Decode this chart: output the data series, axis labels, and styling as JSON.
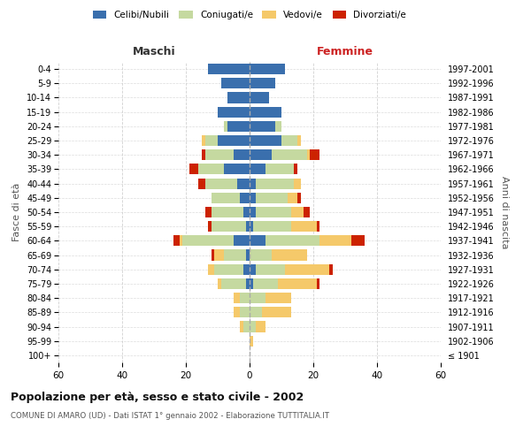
{
  "age_groups": [
    "100+",
    "95-99",
    "90-94",
    "85-89",
    "80-84",
    "75-79",
    "70-74",
    "65-69",
    "60-64",
    "55-59",
    "50-54",
    "45-49",
    "40-44",
    "35-39",
    "30-34",
    "25-29",
    "20-24",
    "15-19",
    "10-14",
    "5-9",
    "0-4"
  ],
  "birth_years": [
    "≤ 1901",
    "1902-1906",
    "1907-1911",
    "1912-1916",
    "1917-1921",
    "1922-1926",
    "1927-1931",
    "1932-1936",
    "1937-1941",
    "1942-1946",
    "1947-1951",
    "1952-1956",
    "1957-1961",
    "1962-1966",
    "1967-1971",
    "1972-1976",
    "1977-1981",
    "1982-1986",
    "1987-1991",
    "1992-1996",
    "1997-2001"
  ],
  "males": {
    "celibi": [
      0,
      0,
      0,
      0,
      0,
      1,
      2,
      1,
      5,
      1,
      2,
      3,
      4,
      8,
      5,
      10,
      7,
      10,
      7,
      9,
      13
    ],
    "coniugati": [
      0,
      0,
      2,
      3,
      3,
      8,
      9,
      7,
      16,
      11,
      10,
      9,
      10,
      8,
      9,
      4,
      1,
      0,
      0,
      0,
      0
    ],
    "vedovi": [
      0,
      0,
      1,
      2,
      2,
      1,
      2,
      3,
      1,
      0,
      0,
      0,
      0,
      0,
      0,
      1,
      0,
      0,
      0,
      0,
      0
    ],
    "divorziati": [
      0,
      0,
      0,
      0,
      0,
      0,
      0,
      1,
      2,
      1,
      2,
      0,
      2,
      3,
      1,
      0,
      0,
      0,
      0,
      0,
      0
    ]
  },
  "females": {
    "nubili": [
      0,
      0,
      0,
      0,
      0,
      1,
      2,
      0,
      5,
      1,
      2,
      2,
      2,
      5,
      7,
      10,
      8,
      10,
      6,
      8,
      11
    ],
    "coniugate": [
      0,
      0,
      2,
      4,
      5,
      8,
      9,
      7,
      17,
      12,
      11,
      10,
      12,
      9,
      11,
      5,
      2,
      0,
      0,
      0,
      0
    ],
    "vedove": [
      0,
      1,
      3,
      9,
      8,
      12,
      14,
      11,
      10,
      8,
      4,
      3,
      2,
      0,
      1,
      1,
      0,
      0,
      0,
      0,
      0
    ],
    "divorziate": [
      0,
      0,
      0,
      0,
      0,
      1,
      1,
      0,
      4,
      1,
      2,
      1,
      0,
      1,
      3,
      0,
      0,
      0,
      0,
      0,
      0
    ]
  },
  "colors": {
    "celibi_nubili": "#3a6fad",
    "coniugati": "#c5d9a0",
    "vedovi": "#f5c96a",
    "divorziati": "#cc2200"
  },
  "xlim": 60,
  "title": "Popolazione per età, sesso e stato civile - 2002",
  "subtitle": "COMUNE DI AMARO (UD) - Dati ISTAT 1° gennaio 2002 - Elaborazione TUTTITALIA.IT",
  "ylabel_left": "Fasce di età",
  "ylabel_right": "Anni di nascita",
  "xlabel_left": "Maschi",
  "xlabel_right": "Femmine",
  "bg_color": "#ffffff",
  "grid_color": "#cccccc"
}
